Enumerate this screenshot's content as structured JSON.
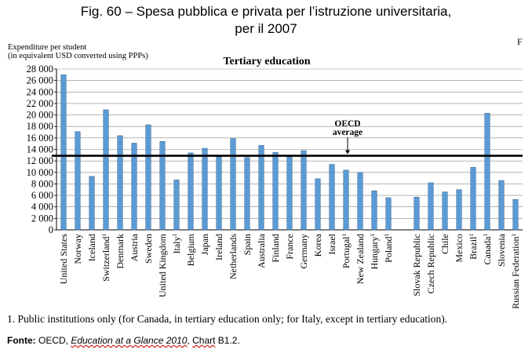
{
  "figure": {
    "title_line1": "Fig. 60 – Spesa pubblica e privata per l’istruzione universitaria,",
    "title_line2": "per il 2007",
    "marker": "F",
    "footnote": "1. Public institutions only (for Canada, in tertiary education only; for Italy, except in tertiary education).",
    "source_label": "Fonte:",
    "source_org": " OECD, ",
    "source_publication": "Education at a Glance 2010",
    "source_sep": ", ",
    "source_chart": "Chart",
    "source_ref": " B1.2."
  },
  "chart_data": {
    "type": "bar",
    "title": "Tertiary education",
    "ylabel_line1": "Expenditure per student",
    "ylabel_line2": "(in equivalent USD converted using PPPs)",
    "ylim": [
      0,
      28000
    ],
    "yticks": [
      "0",
      "2 000",
      "4 000",
      "6 000",
      "8 000",
      "10 000",
      "12 000",
      "14 000",
      "16 000",
      "18 000",
      "20 000",
      "22 000",
      "24 000",
      "26 000",
      "28 000"
    ],
    "grid": true,
    "bar_color": "#5b9bd5",
    "reference_line": {
      "value": 12900,
      "label_line1": "OECD",
      "label_line2": "average"
    },
    "group_gap_after_index": 23,
    "categories": [
      "United States",
      "Norway",
      "Iceland",
      "Switzerland",
      "Denmark",
      "Austria",
      "Sweden",
      "United Kingdom",
      "Italy",
      "Belgium",
      "Japan",
      "Ireland",
      "Netherlands",
      "Spain",
      "Australia",
      "Finland",
      "France",
      "Germany",
      "Korea",
      "Israel",
      "Portugal",
      "New Zealand",
      "Hungary",
      "Poland",
      "Slovak Republic",
      "Czech Republic",
      "Chile",
      "Mexico",
      "Brazil",
      "Canada",
      "Slovenia",
      "Russian Federation"
    ],
    "footnote_marks": [
      "",
      "",
      "",
      "1",
      "",
      "",
      "",
      "",
      "1",
      "",
      "",
      "",
      "",
      "",
      "",
      "",
      "",
      "",
      "",
      "",
      "1",
      "",
      "1",
      "1",
      "",
      "",
      "",
      "",
      "1",
      "1",
      "",
      "1"
    ],
    "values": [
      27000,
      17100,
      9300,
      20900,
      16400,
      15100,
      18300,
      15400,
      8700,
      13400,
      14200,
      12800,
      15900,
      12600,
      14700,
      13500,
      12800,
      13800,
      8900,
      11400,
      10400,
      10000,
      6800,
      5600,
      5700,
      8200,
      6600,
      7000,
      10900,
      20300,
      8600,
      5300
    ]
  }
}
